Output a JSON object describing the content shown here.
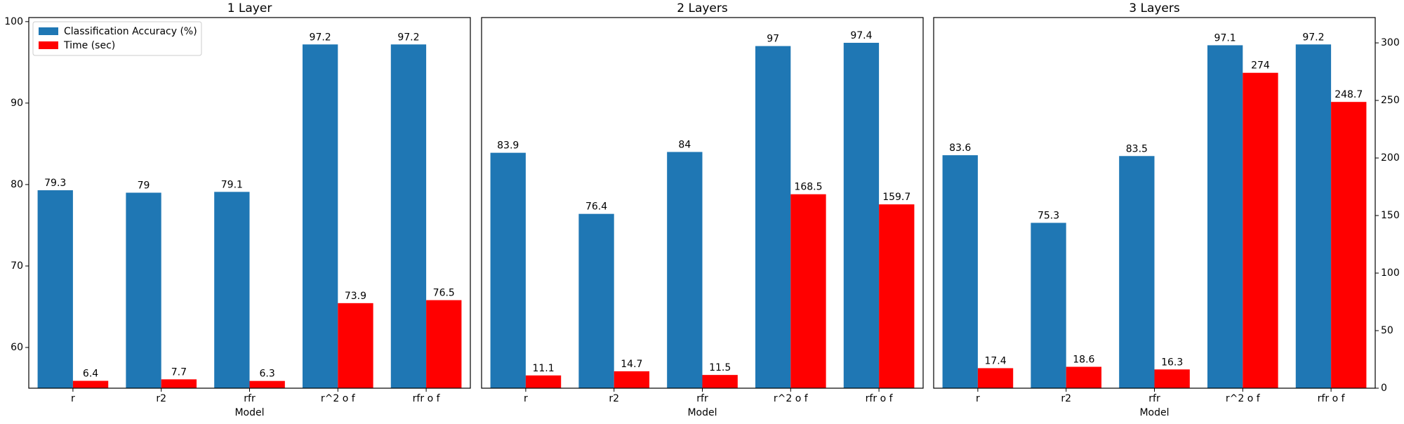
{
  "chart_data": {
    "type": "bar",
    "categories": [
      "r",
      "r2",
      "rfr",
      "r^2 o f",
      "rfr o f"
    ],
    "xlabel": "Model",
    "legend": {
      "placement": "top-left",
      "entries": [
        "Classification Accuracy (%)",
        "Time (sec)"
      ]
    },
    "colors": {
      "accuracy": "#1f77b4",
      "time": "#ff0000"
    },
    "y_left": {
      "ylim": [
        55,
        100.5
      ],
      "ticks": [
        60,
        70,
        80,
        90,
        100
      ]
    },
    "y_right": {
      "ylim": [
        0,
        322
      ],
      "ticks": [
        0,
        50,
        100,
        150,
        200,
        250,
        300
      ]
    },
    "panels": [
      {
        "title": "1 Layer",
        "series": [
          {
            "name": "Classification Accuracy (%)",
            "values": [
              79.3,
              79,
              79.1,
              97.2,
              97.2
            ]
          },
          {
            "name": "Time (sec)",
            "values": [
              6.4,
              7.7,
              6.3,
              73.9,
              76.5
            ]
          }
        ]
      },
      {
        "title": "2 Layers",
        "series": [
          {
            "name": "Classification Accuracy (%)",
            "values": [
              83.9,
              76.4,
              84,
              97,
              97.4
            ]
          },
          {
            "name": "Time (sec)",
            "values": [
              11.1,
              14.7,
              11.5,
              168.5,
              159.7
            ]
          }
        ]
      },
      {
        "title": "3 Layers",
        "series": [
          {
            "name": "Classification Accuracy (%)",
            "values": [
              83.6,
              75.3,
              83.5,
              97.1,
              97.2
            ]
          },
          {
            "name": "Time (sec)",
            "values": [
              17.4,
              18.6,
              16.3,
              274,
              248.7
            ]
          }
        ]
      }
    ]
  }
}
